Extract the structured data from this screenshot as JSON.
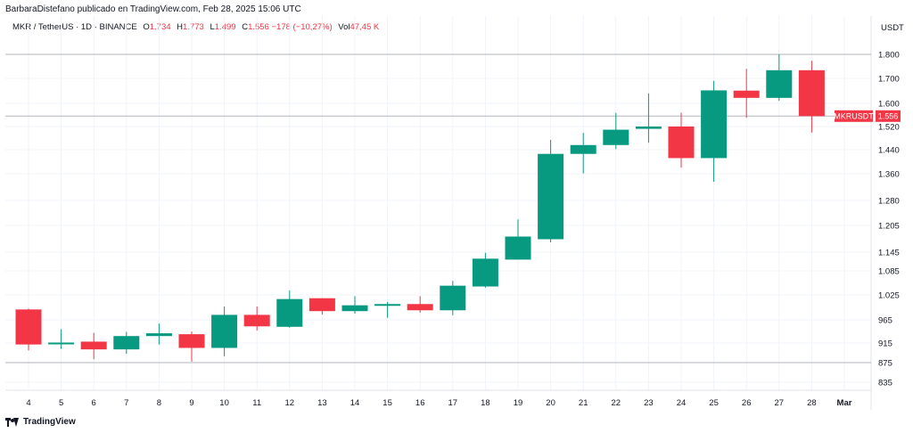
{
  "publisher_line": "BarbaraDistefano publicado en TradingView.com, Feb 28, 2025 15:06 UTC",
  "legend": {
    "symbol": "MKR / TetherUS · 1D · BINANCE",
    "o_label": "O",
    "o_value": "1.734",
    "h_label": "H",
    "h_value": "1.773",
    "l_label": "L",
    "l_value": "1.499",
    "c_label": "C",
    "c_value": "1.556",
    "change": "−178 (−10,27%)",
    "vol_label": "Vol",
    "vol_value": "47,45 K"
  },
  "axis_currency": "USDT",
  "brand": "TradingView",
  "colors": {
    "up": "#089981",
    "down": "#f23645",
    "grid": "#f0f3fa",
    "axis_text": "#131722"
  },
  "chart_data": {
    "type": "candlestick",
    "y_ticks": [
      {
        "label": "1.800",
        "value": 1800
      },
      {
        "label": "1.700",
        "value": 1700
      },
      {
        "label": "1.600",
        "value": 1600
      },
      {
        "label": "1.520",
        "value": 1520
      },
      {
        "label": "1.440",
        "value": 1440
      },
      {
        "label": "1.360",
        "value": 1360
      },
      {
        "label": "1.280",
        "value": 1280
      },
      {
        "label": "1.205",
        "value": 1205
      },
      {
        "label": "1.145",
        "value": 1145
      },
      {
        "label": "1.085",
        "value": 1085
      },
      {
        "label": "1.025",
        "value": 1025
      },
      {
        "label": "965",
        "value": 965
      },
      {
        "label": "915",
        "value": 915
      },
      {
        "label": "875",
        "value": 875
      },
      {
        "label": "835",
        "value": 835
      }
    ],
    "x_labels": [
      "4",
      "5",
      "6",
      "7",
      "8",
      "9",
      "10",
      "11",
      "12",
      "13",
      "14",
      "15",
      "16",
      "17",
      "18",
      "19",
      "20",
      "21",
      "22",
      "23",
      "24",
      "25",
      "26",
      "27",
      "28",
      "Mar"
    ],
    "candles": [
      {
        "x": "4",
        "o": 990,
        "h": 992,
        "l": 900,
        "c": 912
      },
      {
        "x": "5",
        "o": 914,
        "h": 945,
        "l": 903,
        "c": 916
      },
      {
        "x": "6",
        "o": 918,
        "h": 937,
        "l": 882,
        "c": 902
      },
      {
        "x": "7",
        "o": 902,
        "h": 939,
        "l": 893,
        "c": 930
      },
      {
        "x": "8",
        "o": 930,
        "h": 957,
        "l": 912,
        "c": 936
      },
      {
        "x": "9",
        "o": 934,
        "h": 940,
        "l": 877,
        "c": 905
      },
      {
        "x": "10",
        "o": 905,
        "h": 997,
        "l": 888,
        "c": 977
      },
      {
        "x": "11",
        "o": 977,
        "h": 997,
        "l": 942,
        "c": 951
      },
      {
        "x": "12",
        "o": 950,
        "h": 1036,
        "l": 948,
        "c": 1015
      },
      {
        "x": "13",
        "o": 1017,
        "h": 1017,
        "l": 978,
        "c": 986
      },
      {
        "x": "14",
        "o": 986,
        "h": 1022,
        "l": 980,
        "c": 1000
      },
      {
        "x": "15",
        "o": 999,
        "h": 1008,
        "l": 970,
        "c": 1003
      },
      {
        "x": "16",
        "o": 1003,
        "h": 1022,
        "l": 982,
        "c": 988
      },
      {
        "x": "17",
        "o": 988,
        "h": 1060,
        "l": 976,
        "c": 1048
      },
      {
        "x": "18",
        "o": 1046,
        "h": 1143,
        "l": 1043,
        "c": 1124
      },
      {
        "x": "19",
        "o": 1121,
        "h": 1223,
        "l": 1121,
        "c": 1180
      },
      {
        "x": "20",
        "o": 1174,
        "h": 1474,
        "l": 1167,
        "c": 1426
      },
      {
        "x": "21",
        "o": 1426,
        "h": 1498,
        "l": 1361,
        "c": 1456
      },
      {
        "x": "22",
        "o": 1456,
        "h": 1567,
        "l": 1442,
        "c": 1509
      },
      {
        "x": "23",
        "o": 1512,
        "h": 1640,
        "l": 1464,
        "c": 1520
      },
      {
        "x": "24",
        "o": 1520,
        "h": 1568,
        "l": 1380,
        "c": 1412
      },
      {
        "x": "25",
        "o": 1412,
        "h": 1690,
        "l": 1336,
        "c": 1652
      },
      {
        "x": "26",
        "o": 1651,
        "h": 1740,
        "l": 1550,
        "c": 1622
      },
      {
        "x": "27",
        "o": 1622,
        "h": 1800,
        "l": 1610,
        "c": 1734
      },
      {
        "x": "28",
        "o": 1734,
        "h": 1773,
        "l": 1499,
        "c": 1556
      }
    ],
    "horizontal_lines": [
      1800,
      1556,
      875
    ],
    "last_price": {
      "label": "MKRUSDT",
      "value": "1.556"
    },
    "grid": true
  }
}
